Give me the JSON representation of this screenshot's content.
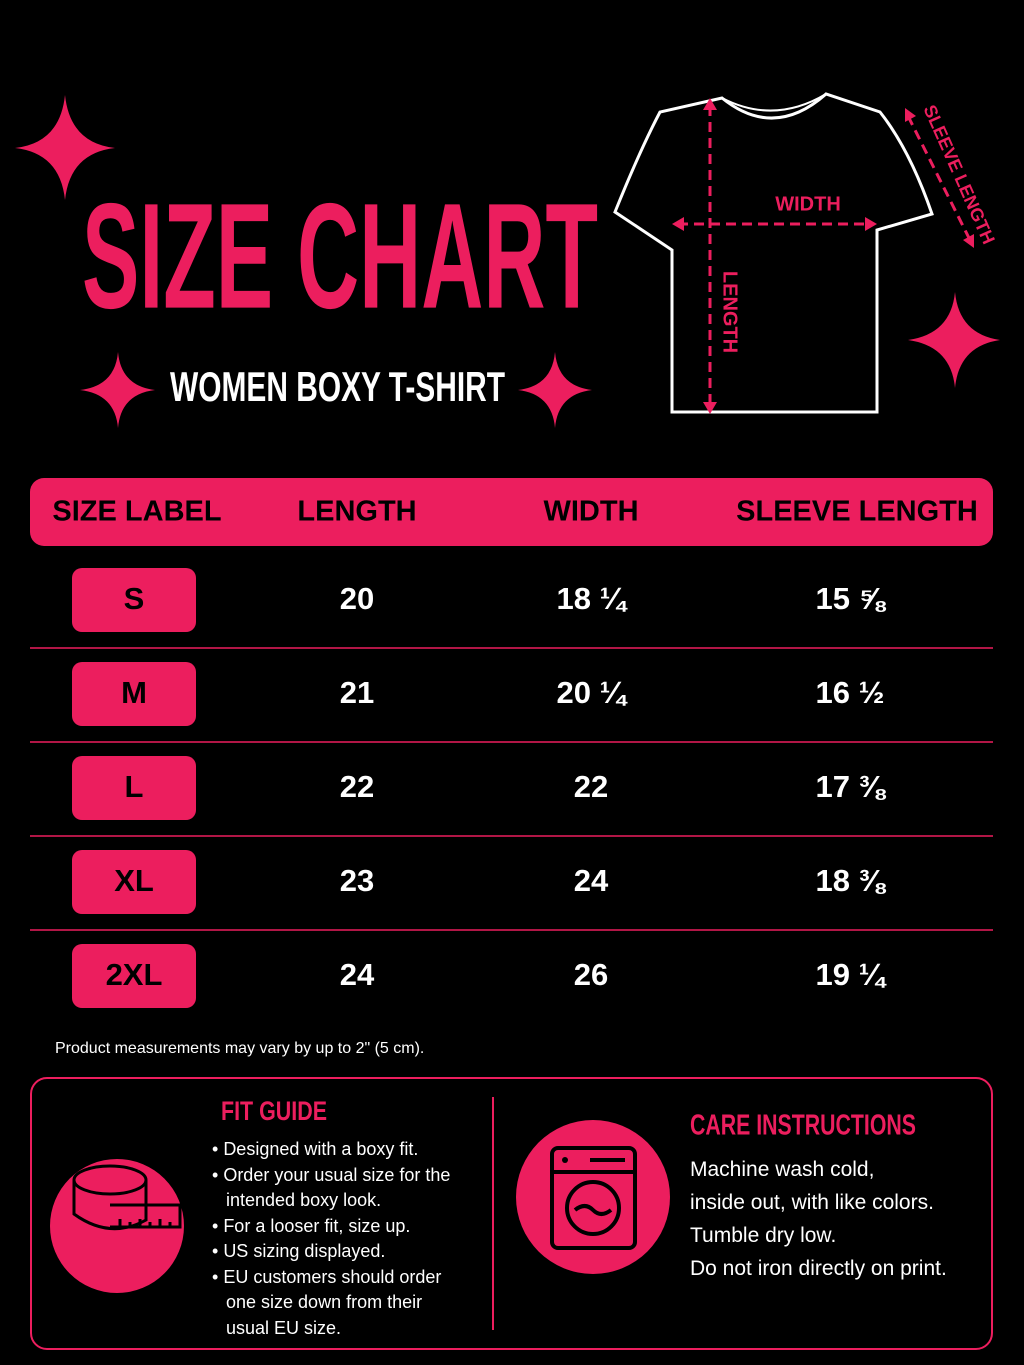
{
  "header": {
    "title": "SIZE CHART",
    "subtitle": "WOMEN BOXY T-SHIRT"
  },
  "diagram": {
    "width_label": "WIDTH",
    "length_label": "LENGTH",
    "sleeve_label": "SLEEVE LENGTH"
  },
  "table": {
    "columns": [
      "SIZE LABEL",
      "LENGTH",
      "WIDTH",
      "SLEEVE LENGTH"
    ],
    "rows": [
      [
        "S",
        "20",
        "18 ¼",
        "15 ⅝"
      ],
      [
        "M",
        "21",
        "20 ¼",
        "16 ½"
      ],
      [
        "L",
        "22",
        "22",
        "17 ⅜"
      ],
      [
        "XL",
        "23",
        "24",
        "18 ⅜"
      ],
      [
        "2XL",
        "24",
        "26",
        "19 ¼"
      ]
    ]
  },
  "note": "Product measurements may vary by up to 2\" (5 cm).",
  "fit_guide": {
    "title": "FIT GUIDE",
    "bullets": [
      "Designed with a boxy fit.",
      "Order your usual size for the intended boxy look.",
      "For a looser fit, size up.",
      "US sizing displayed.",
      "EU customers should order one size down from their usual EU size."
    ]
  },
  "care": {
    "title": "CARE INSTRUCTIONS",
    "lines": [
      "Machine wash cold,",
      "inside out, with like colors.",
      "Tumble dry low.",
      "Do not iron directly on print."
    ]
  }
}
